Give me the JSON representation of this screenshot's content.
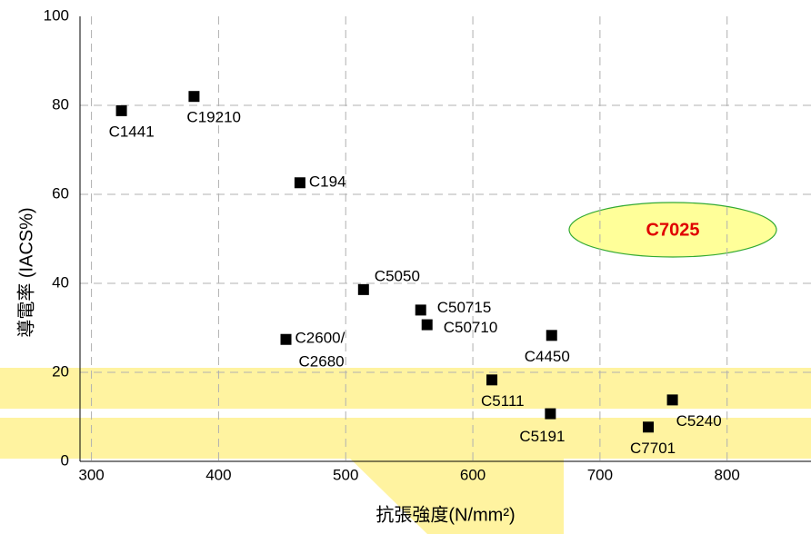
{
  "chart_data": {
    "type": "scatter",
    "x_label": "抗張強度(N/mm²)",
    "y_label": "導電率 (IACS%)",
    "annotation": "C7025",
    "labels": [
      "C1441",
      "C19210",
      "C194",
      "C5050",
      "C50715",
      "C50710",
      "C2600/ C2680",
      "C4450",
      "C5111",
      "C5191",
      "C5240",
      "C7701"
    ],
    "x": [
      323.6,
      380.7,
      464,
      514,
      559,
      564,
      453,
      662,
      615,
      661,
      757,
      738
    ],
    "values": [
      78.8,
      82,
      62.6,
      38.6,
      34,
      30.7,
      27.4,
      28.3,
      18.3,
      10.7,
      13.8,
      7.7
    ],
    "color": "#000000",
    "xlim": [
      291,
      866
    ],
    "xticks": [
      300,
      400,
      500,
      600,
      700,
      800
    ],
    "ylim": [
      0,
      100
    ],
    "yticks": [
      0,
      20,
      40,
      60,
      80,
      100
    ],
    "grid": true
  }
}
